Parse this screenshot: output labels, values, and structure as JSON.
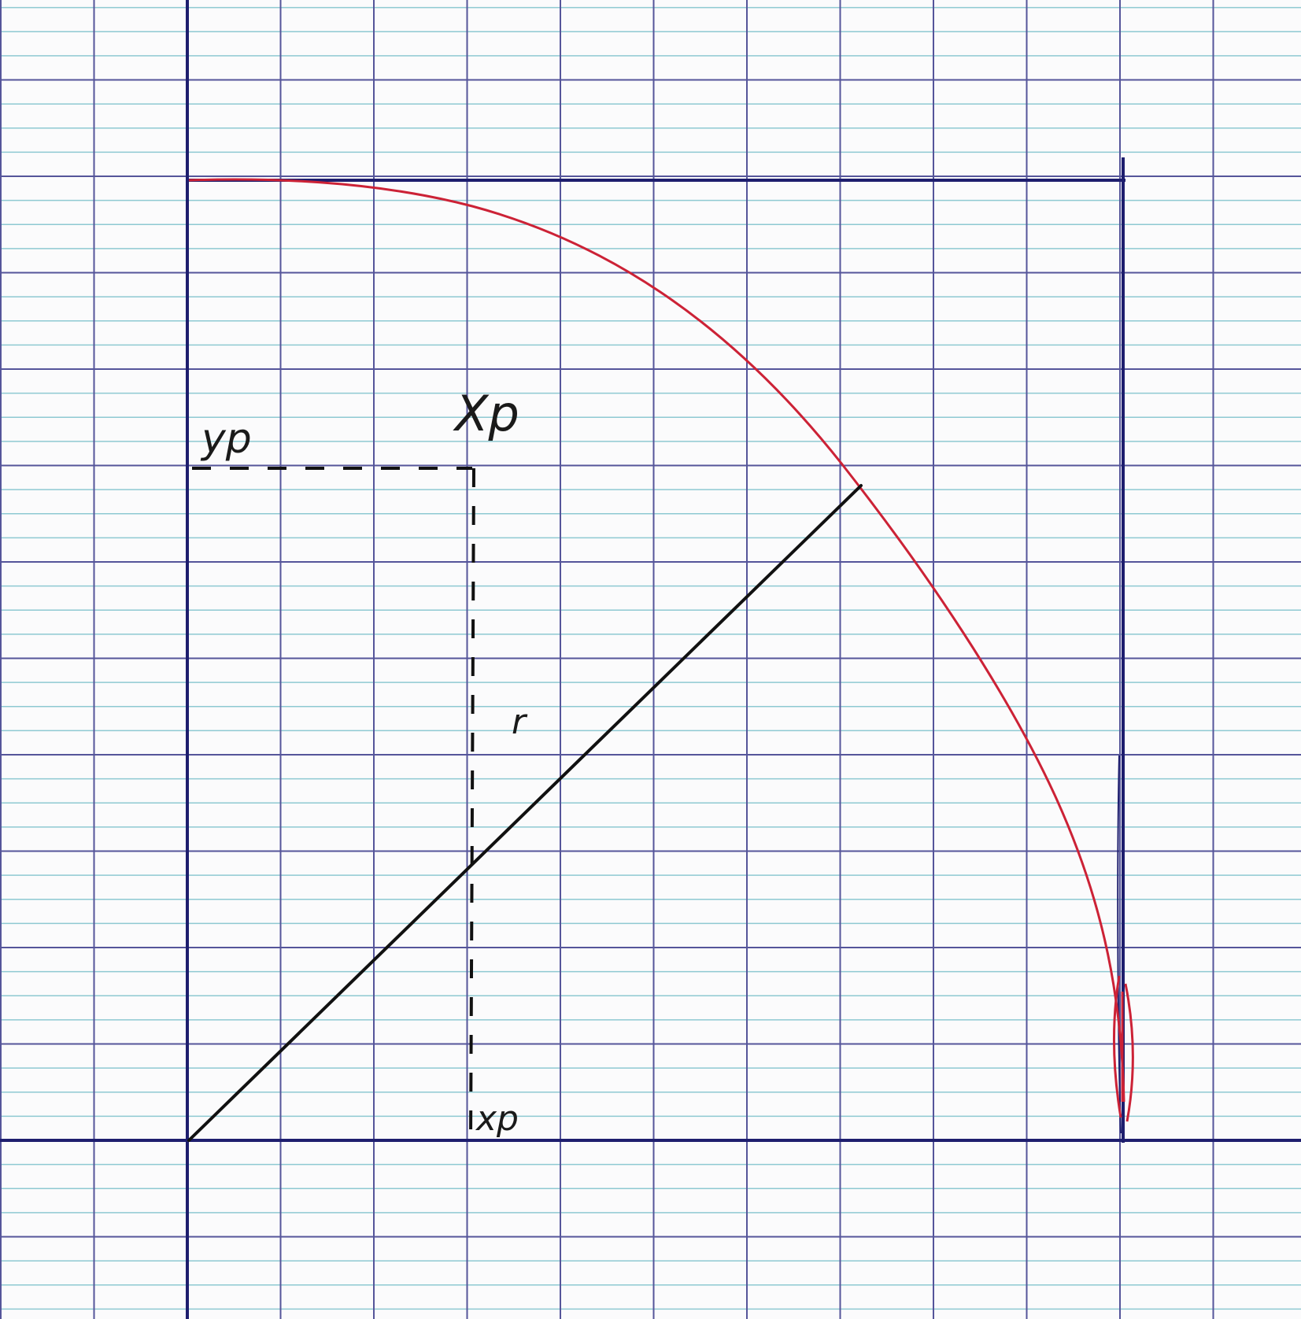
{
  "labels": {
    "xp_top": "Xp",
    "yp": "yp",
    "xp_bottom": "xp",
    "radius": "r"
  },
  "colors": {
    "paper": "#fbfbfc",
    "grid_major": "#55559a",
    "grid_minor": "#8ec9d2",
    "frame": "#1e1e6e",
    "arc": "#cc2236",
    "ink": "#111111"
  }
}
